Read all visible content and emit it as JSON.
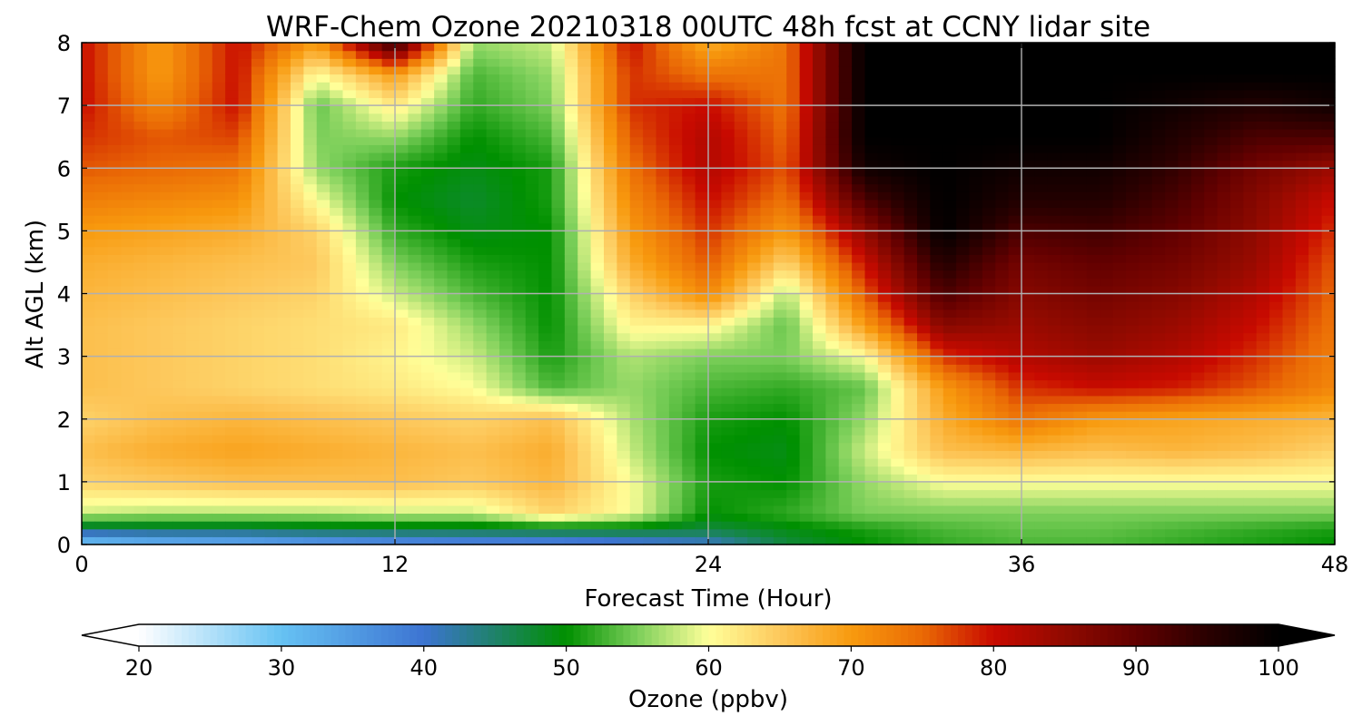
{
  "chart_data": {
    "type": "heatmap",
    "title": "WRF-Chem Ozone  20210318 00UTC 48h fcst at CCNY lidar site",
    "xlabel": "Forecast Time (Hour)",
    "ylabel": "Alt AGL (km)",
    "xlim": [
      0,
      48
    ],
    "ylim": [
      0,
      8
    ],
    "x_ticks": [
      0,
      12,
      24,
      36,
      48
    ],
    "y_ticks": [
      0,
      1,
      2,
      3,
      4,
      5,
      6,
      7,
      8
    ],
    "grid": true,
    "x": [
      0,
      3,
      6,
      9,
      12,
      15,
      18,
      21,
      24,
      27,
      30,
      33,
      36,
      39,
      42,
      45,
      48
    ],
    "y": [
      0,
      0.25,
      0.5,
      1,
      1.5,
      2,
      2.5,
      3,
      3.5,
      4,
      4.5,
      5,
      5.5,
      6,
      6.5,
      7,
      7.5,
      8
    ],
    "z": [
      [
        28,
        30,
        31,
        33,
        35,
        36,
        36,
        38,
        40,
        47,
        50,
        52,
        53,
        53,
        52,
        51,
        50
      ],
      [
        45,
        46,
        46,
        47,
        47,
        47,
        48,
        48,
        47,
        49,
        51,
        53,
        54,
        54,
        53,
        52,
        51
      ],
      [
        58,
        57,
        57,
        57,
        58,
        58,
        64,
        60,
        50,
        52,
        55,
        55,
        55,
        55,
        55,
        55,
        55
      ],
      [
        64,
        65,
        66,
        66,
        66,
        65,
        67,
        60,
        51,
        50,
        56,
        60,
        60,
        60,
        60,
        60,
        60
      ],
      [
        66,
        68,
        69,
        68,
        67,
        66,
        68,
        58,
        50,
        49,
        58,
        66,
        67,
        66,
        67,
        66,
        64
      ],
      [
        64,
        66,
        67,
        66,
        65,
        64,
        66,
        57,
        51,
        50,
        56,
        68,
        74,
        70,
        69,
        68,
        67
      ],
      [
        66,
        65,
        64,
        63,
        62,
        60,
        53,
        56,
        53,
        52,
        54,
        70,
        78,
        80,
        79,
        76,
        72
      ],
      [
        66,
        65,
        64,
        63,
        61,
        58,
        51,
        57,
        55,
        55,
        60,
        78,
        82,
        84,
        82,
        78,
        73
      ],
      [
        66,
        65,
        64,
        63,
        62,
        56,
        50,
        61,
        61,
        54,
        70,
        86,
        84,
        86,
        84,
        80,
        74
      ],
      [
        67,
        66,
        65,
        64,
        58,
        53,
        50,
        64,
        72,
        57,
        76,
        92,
        86,
        88,
        86,
        82,
        75
      ],
      [
        68,
        67,
        66,
        65,
        55,
        51,
        50,
        68,
        76,
        64,
        80,
        96,
        88,
        90,
        88,
        84,
        76
      ],
      [
        70,
        69,
        68,
        64,
        52,
        49,
        50,
        70,
        78,
        70,
        85,
        100,
        92,
        93,
        90,
        85,
        78
      ],
      [
        73,
        72,
        71,
        60,
        50,
        48,
        51,
        72,
        80,
        74,
        92,
        100,
        96,
        96,
        92,
        86,
        80
      ],
      [
        76,
        75,
        74,
        56,
        51,
        49,
        51,
        74,
        82,
        76,
        98,
        100,
        98,
        98,
        94,
        88,
        84
      ],
      [
        78,
        76,
        77,
        55,
        56,
        50,
        53,
        76,
        82,
        75,
        100,
        100,
        100,
        100,
        96,
        92,
        92
      ],
      [
        80,
        72,
        80,
        54,
        62,
        52,
        55,
        78,
        80,
        74,
        100,
        100,
        100,
        100,
        98,
        96,
        98
      ],
      [
        80,
        70,
        80,
        60,
        70,
        53,
        56,
        78,
        74,
        74,
        100,
        100,
        100,
        100,
        100,
        100,
        100
      ],
      [
        80,
        70,
        80,
        70,
        95,
        56,
        58,
        80,
        68,
        74,
        100,
        100,
        100,
        100,
        100,
        100,
        100
      ]
    ],
    "colorbar": {
      "label": "Ozone  (ppbv)",
      "min": 20,
      "max": 100,
      "ticks": [
        20,
        30,
        40,
        50,
        60,
        70,
        80,
        90,
        100
      ],
      "extend": "both",
      "stops": [
        {
          "v": 20,
          "c": "#ffffff"
        },
        {
          "v": 30,
          "c": "#66c2f3"
        },
        {
          "v": 40,
          "c": "#3d74d2"
        },
        {
          "v": 50,
          "c": "#009000"
        },
        {
          "v": 55,
          "c": "#7ccf5a"
        },
        {
          "v": 60,
          "c": "#ffff99"
        },
        {
          "v": 65,
          "c": "#fdc85c"
        },
        {
          "v": 70,
          "c": "#f89a0e"
        },
        {
          "v": 75,
          "c": "#ea6a05"
        },
        {
          "v": 80,
          "c": "#c80a00"
        },
        {
          "v": 85,
          "c": "#900a00"
        },
        {
          "v": 90,
          "c": "#620000"
        },
        {
          "v": 95,
          "c": "#2a0000"
        },
        {
          "v": 100,
          "c": "#000000"
        }
      ]
    }
  }
}
